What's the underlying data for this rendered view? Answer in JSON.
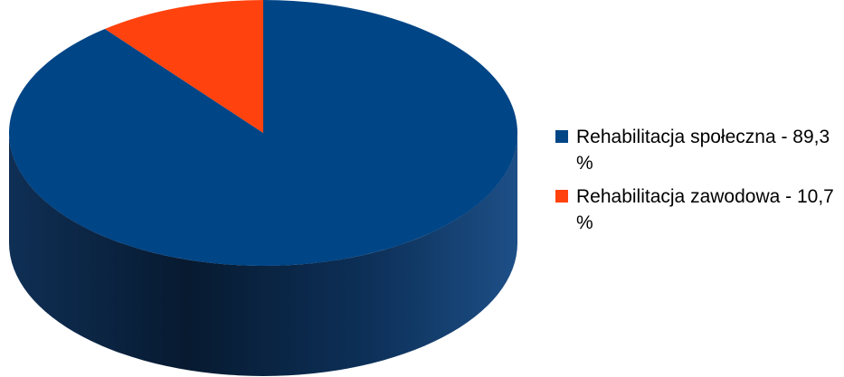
{
  "chart_data": {
    "type": "pie",
    "title": "",
    "three_d": true,
    "legend_position": "right",
    "slices": [
      {
        "label": "Rehabilitacja społeczna - 89,3 %",
        "value": 89.3,
        "color": "#004586"
      },
      {
        "label": "Rehabilitacja zawodowa - 10,7 %",
        "value": 10.7,
        "color": "#ff420e"
      }
    ]
  }
}
